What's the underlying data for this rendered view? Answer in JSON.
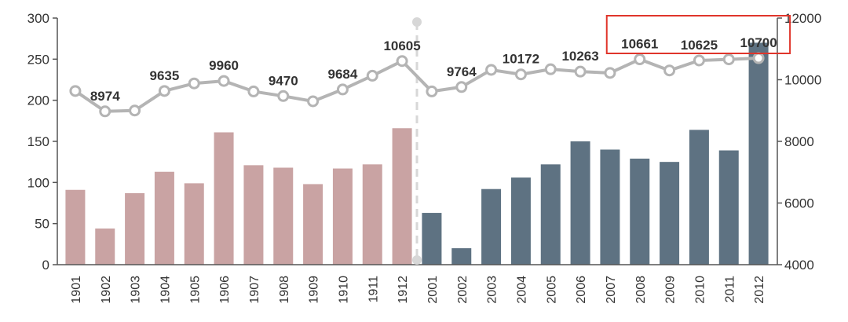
{
  "chart_data": {
    "type": "bar",
    "categories": [
      "1901",
      "1902",
      "1903",
      "1904",
      "1905",
      "1906",
      "1907",
      "1908",
      "1909",
      "1910",
      "1911",
      "1912",
      "2001",
      "2002",
      "2003",
      "2004",
      "2005",
      "2006",
      "2007",
      "2008",
      "2009",
      "2010",
      "2011",
      "2012"
    ],
    "series": [
      {
        "type": "bar",
        "axis": "left",
        "values": [
          91,
          44,
          87,
          113,
          99,
          161,
          121,
          118,
          98,
          117,
          122,
          166,
          63,
          20,
          92,
          106,
          122,
          150,
          140,
          129,
          125,
          164,
          139,
          270
        ],
        "colors_by_group": [
          "#c9a3a3",
          "#5e7282"
        ],
        "group_split_index": 12
      },
      {
        "type": "line",
        "axis": "right",
        "values": [
          9635,
          8974,
          9000,
          9635,
          9880,
          9960,
          9620,
          9470,
          9300,
          9684,
          10130,
          10605,
          9620,
          9764,
          10320,
          10172,
          10340,
          10263,
          10220,
          10661,
          10300,
          10625,
          10660,
          10700
        ],
        "color": "#b4b4b4"
      }
    ],
    "data_labels": [
      {
        "index": 1,
        "text": "8974"
      },
      {
        "index": 3,
        "text": "9635"
      },
      {
        "index": 5,
        "text": "9960"
      },
      {
        "index": 7,
        "text": "9470"
      },
      {
        "index": 9,
        "text": "9684"
      },
      {
        "index": 11,
        "text": "10605"
      },
      {
        "index": 13,
        "text": "9764"
      },
      {
        "index": 15,
        "text": "10172"
      },
      {
        "index": 17,
        "text": "10263"
      },
      {
        "index": 19,
        "text": "10661"
      },
      {
        "index": 21,
        "text": "10625"
      },
      {
        "index": 23,
        "text": "10700"
      }
    ],
    "highlight_box_indices": [
      19,
      23
    ],
    "highlight_color": "#e0352b",
    "left_axis": {
      "ticks": [
        "0",
        "50",
        "100",
        "150",
        "200",
        "250",
        "300"
      ],
      "ylim": [
        0,
        300
      ]
    },
    "right_axis": {
      "ticks": [
        "4000",
        "6000",
        "8000",
        "10000",
        "12000"
      ],
      "ylim": [
        4000,
        12000
      ]
    },
    "divider_after_index": 11,
    "divider_color": "#d7d7d7",
    "xlabel": "",
    "ylabel": "",
    "title": ""
  }
}
